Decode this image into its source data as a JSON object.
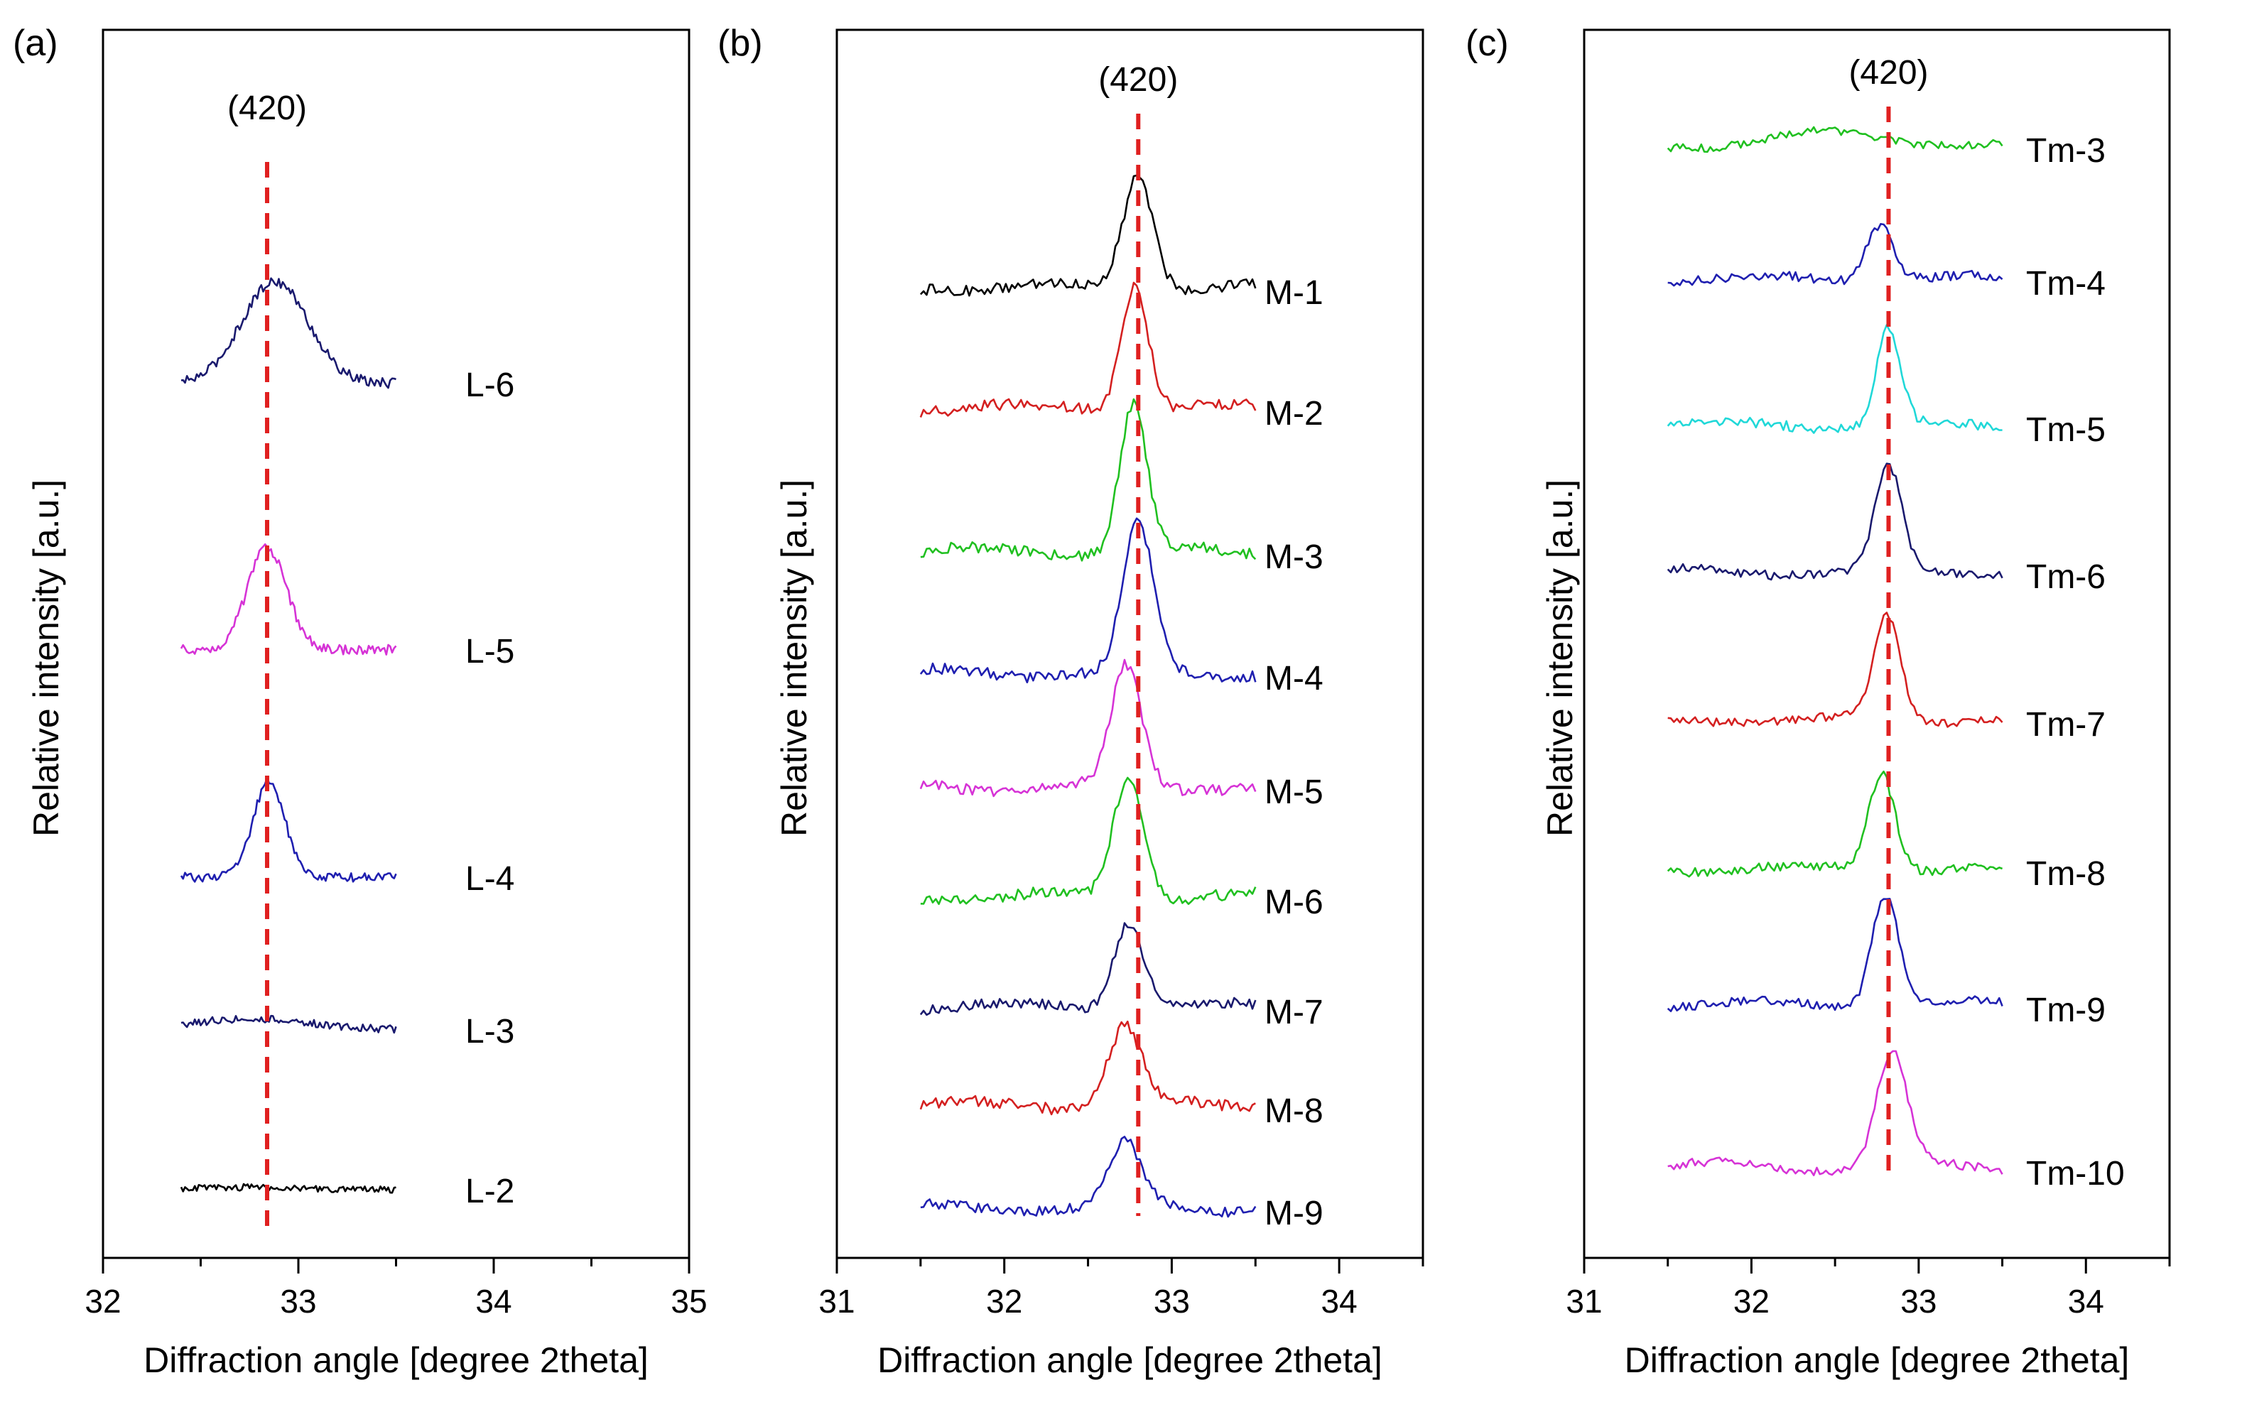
{
  "chart_data": [
    {
      "panel_label": "(a)",
      "type": "line",
      "xlabel": "Diffraction angle [degree 2theta]",
      "ylabel": "Relative intensity [a.u.]",
      "xlim": [
        32,
        35
      ],
      "xticks": [
        "32",
        "33",
        "34",
        "35"
      ],
      "peak_label": "(420)",
      "reference_line_x": 32.84,
      "x_range": [
        32.4,
        33.5
      ],
      "series": [
        {
          "name": "L-6",
          "color": "#1a1a6e",
          "peak_center": 32.88,
          "peak_height": 0.9,
          "peak_width": 0.17,
          "noise": 0.045,
          "baseline": 0.0
        },
        {
          "name": "L-5",
          "color": "#d633d6",
          "peak_center": 32.84,
          "peak_height": 0.9,
          "peak_width": 0.1,
          "noise": 0.045,
          "baseline": 0.0
        },
        {
          "name": "L-4",
          "color": "#1f1fb0",
          "peak_center": 32.85,
          "peak_height": 0.85,
          "peak_width": 0.08,
          "noise": 0.04,
          "baseline": 0.0
        },
        {
          "name": "L-3",
          "color": "#1a1a6e",
          "peak_center": 32.75,
          "peak_height": 0.1,
          "peak_width": 0.3,
          "noise": 0.035,
          "baseline": 0.0
        },
        {
          "name": "L-2",
          "color": "#000000",
          "peak_center": 32.7,
          "peak_height": 0.02,
          "peak_width": 0.3,
          "noise": 0.03,
          "baseline": 0.0
        }
      ]
    },
    {
      "panel_label": "(b)",
      "type": "line",
      "xlabel": "Diffraction angle [degree 2theta]",
      "ylabel": "Relative intensity [a.u.]",
      "xlim": [
        31,
        34.5
      ],
      "xticks": [
        "31",
        "32",
        "33",
        "34"
      ],
      "peak_label": "(420)",
      "reference_line_x": 32.8,
      "x_range": [
        31.5,
        33.5
      ],
      "series": [
        {
          "name": "M-1",
          "color": "#000000",
          "peak_center": 32.8,
          "peak_height": 1.0,
          "peak_width": 0.09,
          "noise": 0.05,
          "baseline": 0.12
        },
        {
          "name": "M-2",
          "color": "#d42020",
          "peak_center": 32.78,
          "peak_height": 1.1,
          "peak_width": 0.08,
          "noise": 0.05,
          "baseline": 0.12
        },
        {
          "name": "M-3",
          "color": "#20c020",
          "peak_center": 32.77,
          "peak_height": 1.3,
          "peak_width": 0.08,
          "noise": 0.05,
          "baseline": 0.12
        },
        {
          "name": "M-4",
          "color": "#1f1fb0",
          "peak_center": 32.8,
          "peak_height": 1.3,
          "peak_width": 0.09,
          "noise": 0.05,
          "baseline": 0.12
        },
        {
          "name": "M-5",
          "color": "#d633d6",
          "peak_center": 32.73,
          "peak_height": 1.05,
          "peak_width": 0.09,
          "noise": 0.05,
          "baseline": 0.12
        },
        {
          "name": "M-6",
          "color": "#20c020",
          "peak_center": 32.74,
          "peak_height": 1.05,
          "peak_width": 0.09,
          "noise": 0.05,
          "baseline": 0.12
        },
        {
          "name": "M-7",
          "color": "#1a1a6e",
          "peak_center": 32.74,
          "peak_height": 0.75,
          "peak_width": 0.09,
          "noise": 0.045,
          "baseline": 0.12
        },
        {
          "name": "M-8",
          "color": "#d42020",
          "peak_center": 32.72,
          "peak_height": 0.7,
          "peak_width": 0.1,
          "noise": 0.05,
          "baseline": 0.12
        },
        {
          "name": "M-9",
          "color": "#1f1fb0",
          "peak_center": 32.72,
          "peak_height": 0.55,
          "peak_width": 0.1,
          "noise": 0.045,
          "baseline": 0.12
        }
      ]
    },
    {
      "panel_label": "(c)",
      "type": "line",
      "xlabel": "Diffraction angle [degree 2theta]",
      "ylabel": "Relative intensity [a.u.]",
      "xlim": [
        31,
        34.5
      ],
      "xticks": [
        "31",
        "32",
        "33",
        "34"
      ],
      "peak_label": "(420)",
      "reference_line_x": 32.82,
      "x_range": [
        31.5,
        33.5
      ],
      "series": [
        {
          "name": "Tm-3",
          "color": "#20c020",
          "peak_center": 32.5,
          "peak_height": 0.12,
          "peak_width": 0.35,
          "noise": 0.035,
          "baseline": 0.08
        },
        {
          "name": "Tm-4",
          "color": "#1f1fb0",
          "peak_center": 32.77,
          "peak_height": 0.5,
          "peak_width": 0.08,
          "noise": 0.04,
          "baseline": 0.1
        },
        {
          "name": "Tm-5",
          "color": "#20d8d8",
          "peak_center": 32.82,
          "peak_height": 0.85,
          "peak_width": 0.07,
          "noise": 0.045,
          "baseline": 0.1
        },
        {
          "name": "Tm-6",
          "color": "#1a1a6e",
          "peak_center": 32.82,
          "peak_height": 0.9,
          "peak_width": 0.08,
          "noise": 0.04,
          "baseline": 0.1
        },
        {
          "name": "Tm-7",
          "color": "#d42020",
          "peak_center": 32.81,
          "peak_height": 0.9,
          "peak_width": 0.08,
          "noise": 0.04,
          "baseline": 0.1
        },
        {
          "name": "Tm-8",
          "color": "#20c020",
          "peak_center": 32.78,
          "peak_height": 0.85,
          "peak_width": 0.08,
          "noise": 0.04,
          "baseline": 0.1
        },
        {
          "name": "Tm-9",
          "color": "#1f1fb0",
          "peak_center": 32.8,
          "peak_height": 1.0,
          "peak_width": 0.08,
          "noise": 0.04,
          "baseline": 0.12
        },
        {
          "name": "Tm-10",
          "color": "#d633d6",
          "peak_center": 32.84,
          "peak_height": 1.0,
          "peak_width": 0.09,
          "noise": 0.04,
          "baseline": 0.15
        }
      ]
    }
  ],
  "reference_line_color": "#e02020"
}
